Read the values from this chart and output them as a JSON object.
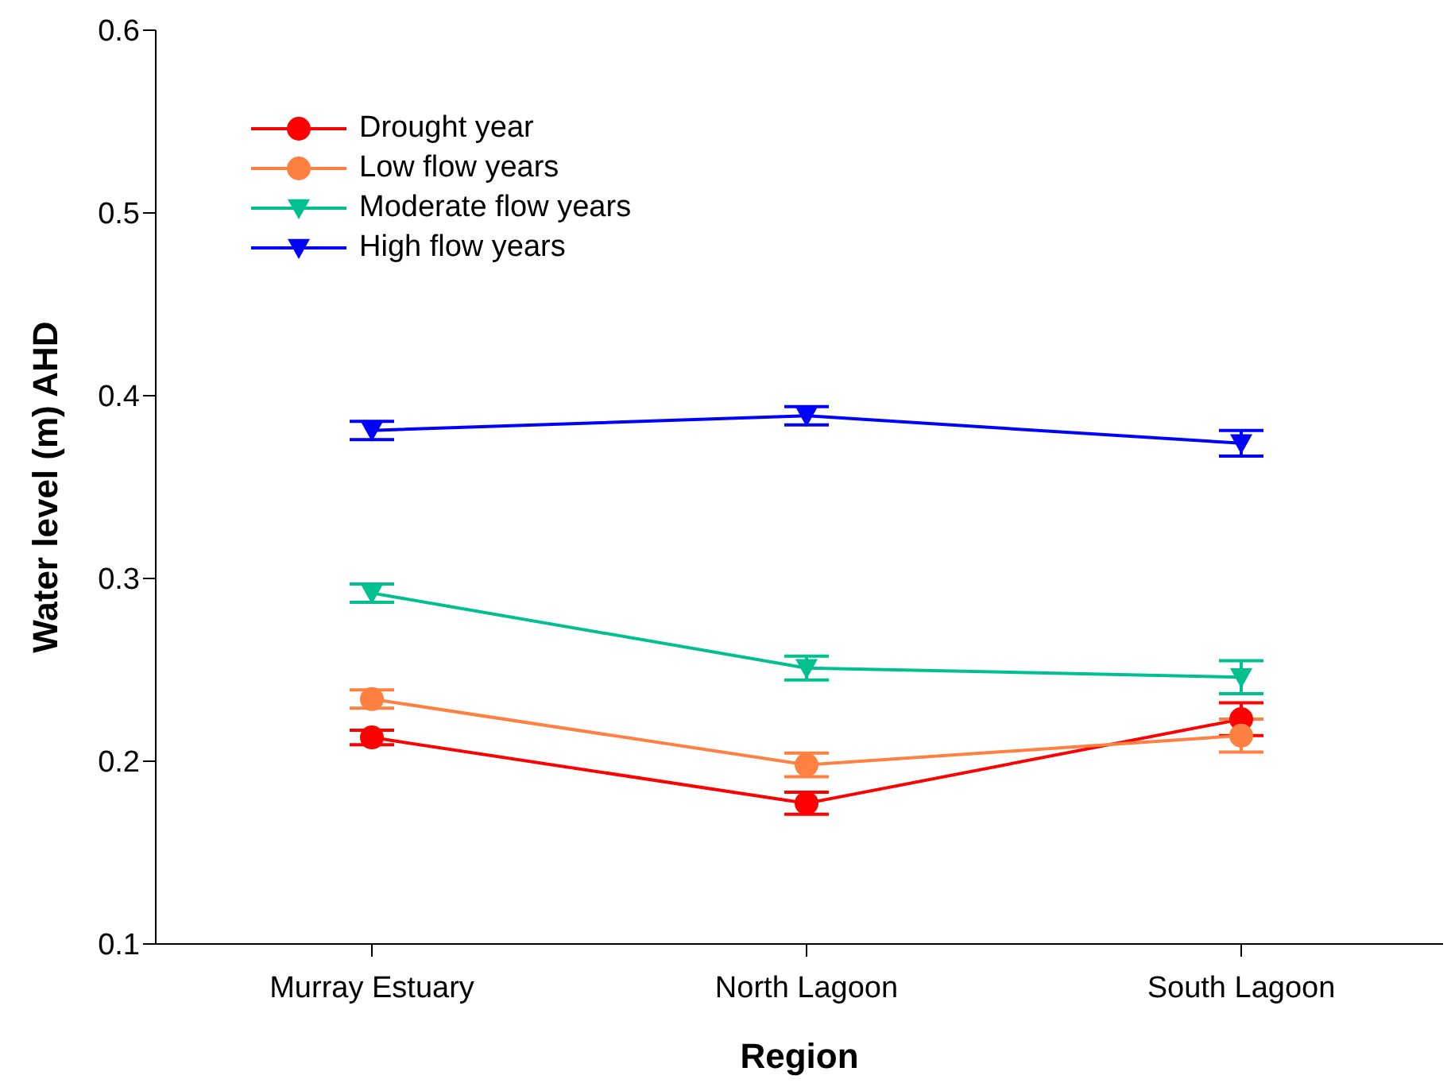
{
  "chart_data": {
    "type": "line",
    "xlabel": "Region",
    "ylabel": "Water level (m) AHD",
    "categories": [
      "Murray Estuary",
      "North Lagoon",
      "South Lagoon"
    ],
    "series": [
      {
        "name": "Drought year",
        "color": "#ff0000",
        "marker": "circle",
        "values": [
          0.213,
          0.177,
          0.223
        ],
        "errors": [
          0.004,
          0.006,
          0.009
        ]
      },
      {
        "name": "Low flow years",
        "color": "#ff8040",
        "marker": "circle",
        "values": [
          0.234,
          0.198,
          0.214
        ],
        "errors": [
          0.005,
          0.0065,
          0.009
        ]
      },
      {
        "name": "Moderate flow years",
        "color": "#00c090",
        "marker": "triangle",
        "values": [
          0.292,
          0.251,
          0.246
        ],
        "errors": [
          0.005,
          0.0065,
          0.009
        ]
      },
      {
        "name": "High flow years",
        "color": "#0000ff",
        "marker": "triangle",
        "values": [
          0.381,
          0.389,
          0.374
        ],
        "errors": [
          0.005,
          0.005,
          0.007
        ]
      }
    ],
    "ylim": [
      0.1,
      0.6
    ],
    "yticks": [
      0.1,
      0.2,
      0.3,
      0.4,
      0.5,
      0.6
    ],
    "grid": false,
    "legend": "top left"
  }
}
